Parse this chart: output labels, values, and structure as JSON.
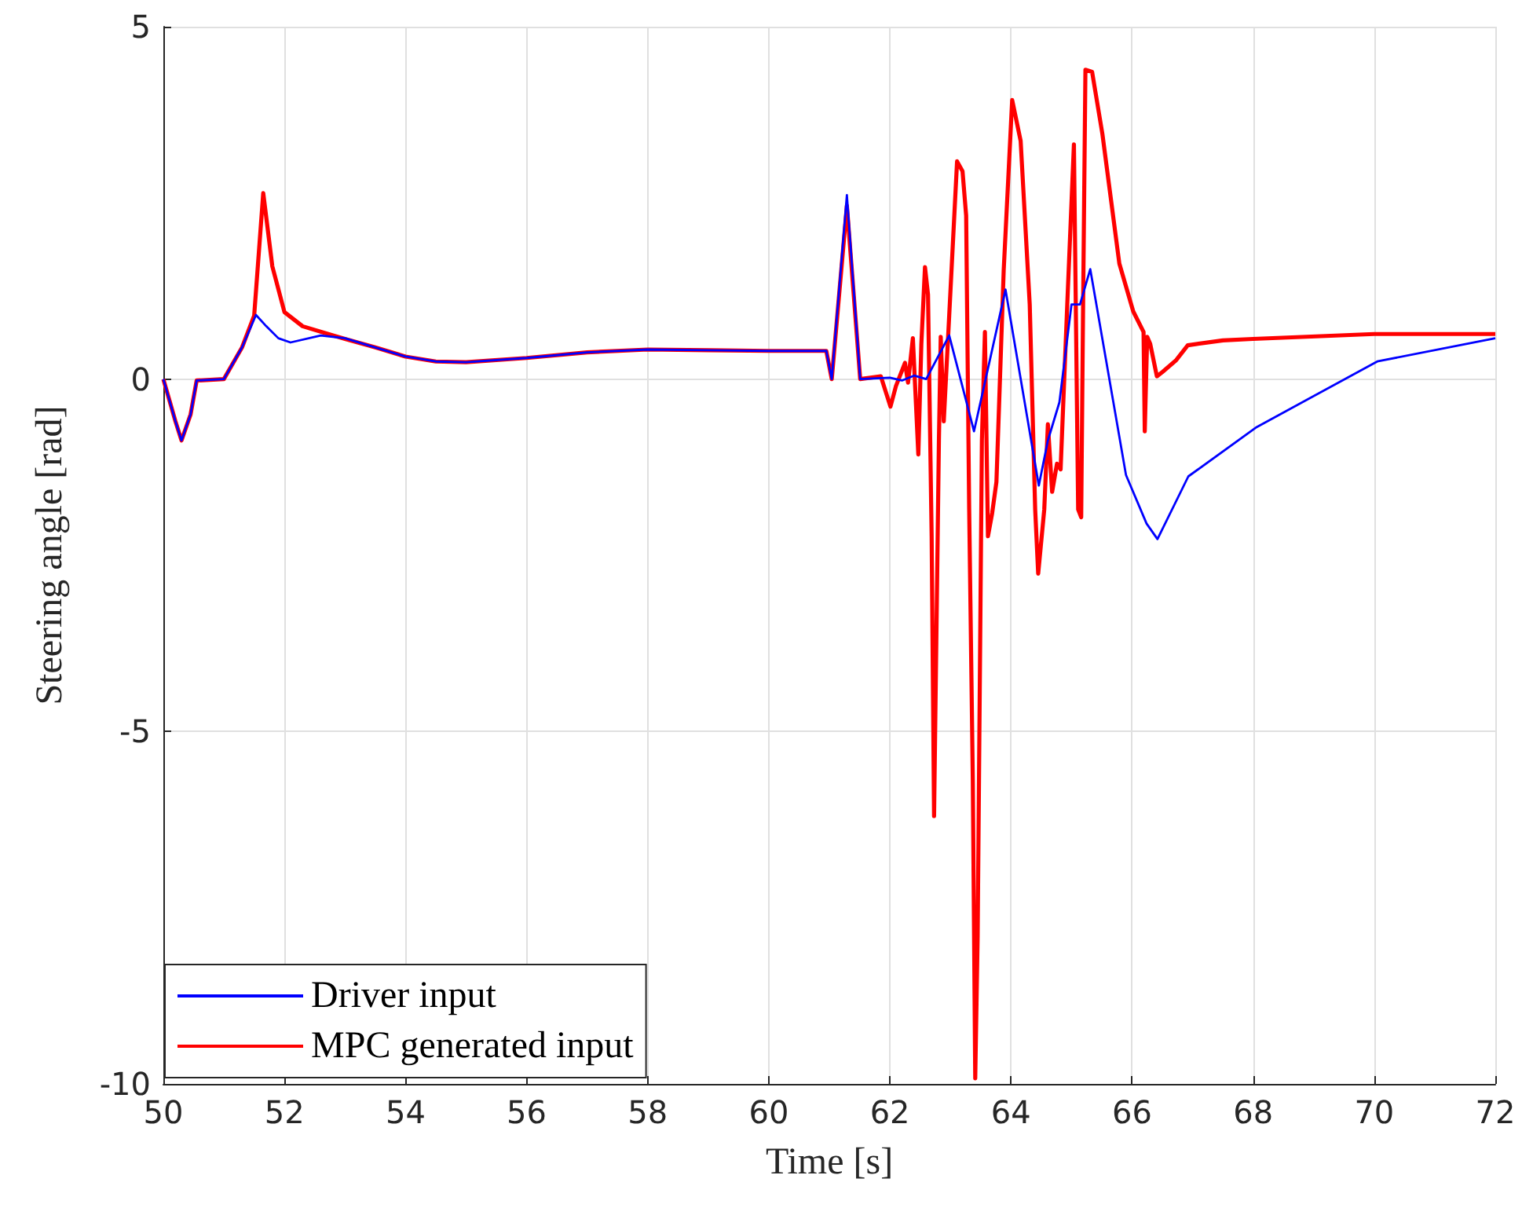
{
  "chart_data": {
    "type": "line",
    "xlabel": "Time [s]",
    "ylabel": "Steering angle [rad]",
    "xlim": [
      50,
      72
    ],
    "xticks": [
      50,
      52,
      54,
      56,
      58,
      60,
      62,
      64,
      66,
      68,
      70,
      72
    ],
    "ylim": [
      -10,
      5
    ],
    "yticks": [
      -10,
      -5,
      0,
      5
    ],
    "grid": true,
    "legend": "bottom left",
    "marker": "none",
    "line_style": "solid",
    "series": [
      {
        "name": "Driver input",
        "color": "#0000ff",
        "x": [
          50,
          50.2,
          50.3,
          50.45,
          50.55,
          51.0,
          51.3,
          51.53,
          51.7,
          51.9,
          52.1,
          52.6,
          53,
          53.5,
          54,
          54.5,
          55,
          56,
          57,
          58,
          59,
          60,
          60.95,
          61.04,
          61.29,
          61.51,
          62.0,
          62.2,
          62.4,
          62.6,
          62.98,
          63.39,
          63.91,
          64.46,
          64.61,
          64.8,
          65.0,
          65.14,
          65.31,
          65.9,
          66.24,
          66.42,
          66.93,
          68.06,
          70.05,
          72.0
        ],
        "values": [
          0,
          -0.6,
          -0.87,
          -0.5,
          -0.02,
          0,
          0.45,
          0.91,
          0.75,
          0.58,
          0.52,
          0.62,
          0.58,
          0.45,
          0.32,
          0.25,
          0.24,
          0.3,
          0.38,
          0.42,
          0.41,
          0.4,
          0.4,
          0,
          2.61,
          0,
          0.02,
          -0.02,
          0.05,
          0,
          0.62,
          -0.74,
          1.27,
          -1.51,
          -0.87,
          -0.33,
          1.06,
          1.06,
          1.56,
          -1.36,
          -2.05,
          -2.27,
          -1.38,
          -0.68,
          0.25,
          0.58
        ]
      },
      {
        "name": "MPC generated input",
        "color": "#ff0000",
        "x": [
          50,
          50.2,
          50.3,
          50.45,
          50.55,
          51.0,
          51.3,
          51.5,
          51.65,
          51.8,
          52.0,
          52.3,
          52.8,
          53,
          53.5,
          54,
          54.5,
          55,
          56,
          57,
          58,
          59,
          60,
          60.95,
          61.04,
          61.29,
          61.51,
          61.85,
          62.01,
          62.1,
          62.25,
          62.3,
          62.38,
          62.47,
          62.52,
          62.58,
          62.63,
          62.69,
          62.73,
          62.81,
          62.84,
          62.89,
          62.98,
          63.11,
          63.2,
          63.26,
          63.31,
          63.37,
          63.41,
          63.45,
          63.52,
          63.57,
          63.62,
          63.69,
          63.76,
          63.88,
          64.02,
          64.16,
          64.31,
          64.4,
          64.45,
          64.55,
          64.61,
          64.68,
          64.76,
          64.82,
          64.93,
          65.04,
          65.11,
          65.16,
          65.19,
          65.23,
          65.34,
          65.51,
          65.79,
          66.02,
          66.19,
          66.21,
          66.25,
          66.3,
          66.41,
          66.5,
          66.73,
          66.92,
          67.5,
          68,
          70,
          72
        ],
        "values": [
          0,
          -0.6,
          -0.87,
          -0.5,
          -0.02,
          0,
          0.45,
          0.9,
          2.64,
          1.6,
          0.95,
          0.75,
          0.62,
          0.57,
          0.45,
          0.32,
          0.25,
          0.24,
          0.3,
          0.38,
          0.42,
          0.41,
          0.4,
          0.4,
          0,
          2.46,
          0,
          0.04,
          -0.39,
          -0.1,
          0.23,
          -0.05,
          0.58,
          -1.07,
          0.5,
          1.59,
          1.2,
          -2.23,
          -6.2,
          -0.87,
          0.6,
          -0.6,
          0.9,
          3.09,
          2.95,
          2.32,
          -1.85,
          -5.7,
          -9.92,
          -7.9,
          -0.87,
          0.67,
          -2.23,
          -1.9,
          -1.46,
          1.54,
          3.96,
          3.38,
          1.06,
          -1.85,
          -2.76,
          -1.85,
          -0.64,
          -1.6,
          -1.2,
          -1.28,
          1.06,
          3.33,
          -1.85,
          -1.96,
          0.9,
          4.39,
          4.36,
          3.48,
          1.64,
          0.96,
          0.67,
          -0.74,
          0.6,
          0.5,
          0.04,
          0.1,
          0.27,
          0.48,
          0.55,
          0.57,
          0.64,
          0.64
        ]
      }
    ]
  }
}
